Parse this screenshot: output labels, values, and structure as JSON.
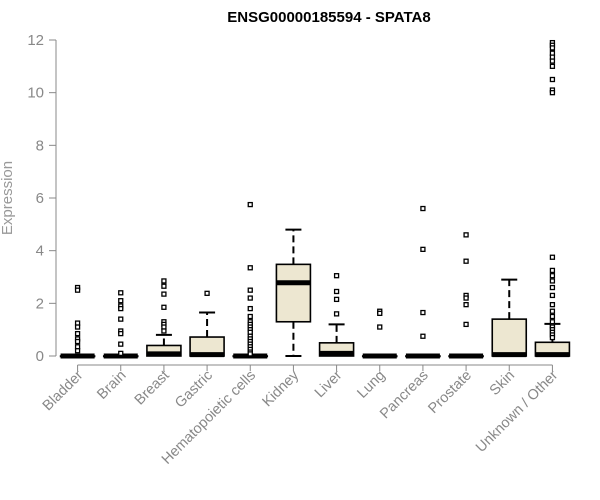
{
  "chart_data": {
    "type": "boxplot",
    "title": "ENSG00000185594 - SPATA8",
    "ylabel": "Expression",
    "xlabel": "",
    "ylim": [
      0,
      12
    ],
    "yticks": [
      "0",
      "2",
      "4",
      "6",
      "8",
      "10",
      "12"
    ],
    "grid": false,
    "legend": "none",
    "box_fill": "#ede7d1",
    "categories": [
      "Bladder",
      "Brain",
      "Breast",
      "Gastric",
      "Hematopoietic cells",
      "Kidney",
      "Liver",
      "Lung",
      "Pancreas",
      "Prostate",
      "Skin",
      "Unknown / Other"
    ],
    "boxes": [
      {
        "category": "Bladder",
        "lower_whisker": 0,
        "q1": 0,
        "median": 0,
        "q3": 0,
        "upper_whisker": 0,
        "outliers": [
          2.6,
          2.5,
          1.25,
          1.1,
          0.85,
          0.65,
          0.55,
          0.35,
          0.2
        ]
      },
      {
        "category": "Brain",
        "lower_whisker": 0,
        "q1": 0,
        "median": 0,
        "q3": 0,
        "upper_whisker": 0,
        "outliers": [
          2.4,
          2.1,
          1.9,
          1.8,
          1.4,
          0.95,
          0.85,
          0.45,
          0.1
        ]
      },
      {
        "category": "Breast",
        "lower_whisker": 0,
        "q1": 0,
        "median": 0.08,
        "q3": 0.4,
        "upper_whisker": 0.8,
        "outliers": [
          2.85,
          2.65,
          2.35,
          1.85,
          1.3,
          1.2,
          1.1,
          0.95
        ]
      },
      {
        "category": "Gastric",
        "lower_whisker": 0,
        "q1": 0,
        "median": 0.05,
        "q3": 0.72,
        "upper_whisker": 1.65,
        "outliers": [
          2.38
        ]
      },
      {
        "category": "Hematopoietic cells",
        "lower_whisker": 0,
        "q1": 0,
        "median": 0,
        "q3": 0,
        "upper_whisker": 0,
        "outliers": [
          5.75,
          3.35,
          2.5,
          2.2,
          1.8,
          1.5,
          1.3,
          1.2,
          1.1,
          1.0,
          0.9,
          0.75,
          0.65,
          0.55,
          0.45,
          0.35,
          0.25,
          0.15,
          0.08
        ]
      },
      {
        "category": "Kidney",
        "lower_whisker": 0,
        "q1": 1.3,
        "median": 2.78,
        "q3": 3.48,
        "upper_whisker": 4.8,
        "outliers": []
      },
      {
        "category": "Liver",
        "lower_whisker": 0,
        "q1": 0,
        "median": 0.1,
        "q3": 0.5,
        "upper_whisker": 1.2,
        "outliers": [
          3.05,
          2.45,
          2.15,
          1.6
        ]
      },
      {
        "category": "Lung",
        "lower_whisker": 0,
        "q1": 0,
        "median": 0,
        "q3": 0,
        "upper_whisker": 0,
        "outliers": [
          1.7,
          1.62,
          1.1
        ]
      },
      {
        "category": "Pancreas",
        "lower_whisker": 0,
        "q1": 0,
        "median": 0,
        "q3": 0,
        "upper_whisker": 0,
        "outliers": [
          5.6,
          4.05,
          1.65,
          0.75
        ]
      },
      {
        "category": "Prostate",
        "lower_whisker": 0,
        "q1": 0,
        "median": 0,
        "q3": 0,
        "upper_whisker": 0,
        "outliers": [
          4.6,
          3.6,
          2.3,
          2.2,
          1.95,
          1.2
        ]
      },
      {
        "category": "Skin",
        "lower_whisker": 0,
        "q1": 0,
        "median": 0.05,
        "q3": 1.4,
        "upper_whisker": 2.9,
        "outliers": []
      },
      {
        "category": "Unknown / Other",
        "lower_whisker": 0,
        "q1": 0,
        "median": 0.05,
        "q3": 0.52,
        "upper_whisker": 1.22,
        "outliers": [
          11.9,
          11.8,
          11.7,
          11.5,
          11.35,
          11.2,
          11.0,
          10.5,
          10.1,
          10.0,
          3.75,
          3.25,
          3.05,
          2.85,
          2.6,
          2.3,
          1.95,
          1.7,
          1.5,
          1.3,
          1.15,
          1.1,
          1.0,
          0.9,
          0.8,
          0.7
        ]
      }
    ]
  }
}
